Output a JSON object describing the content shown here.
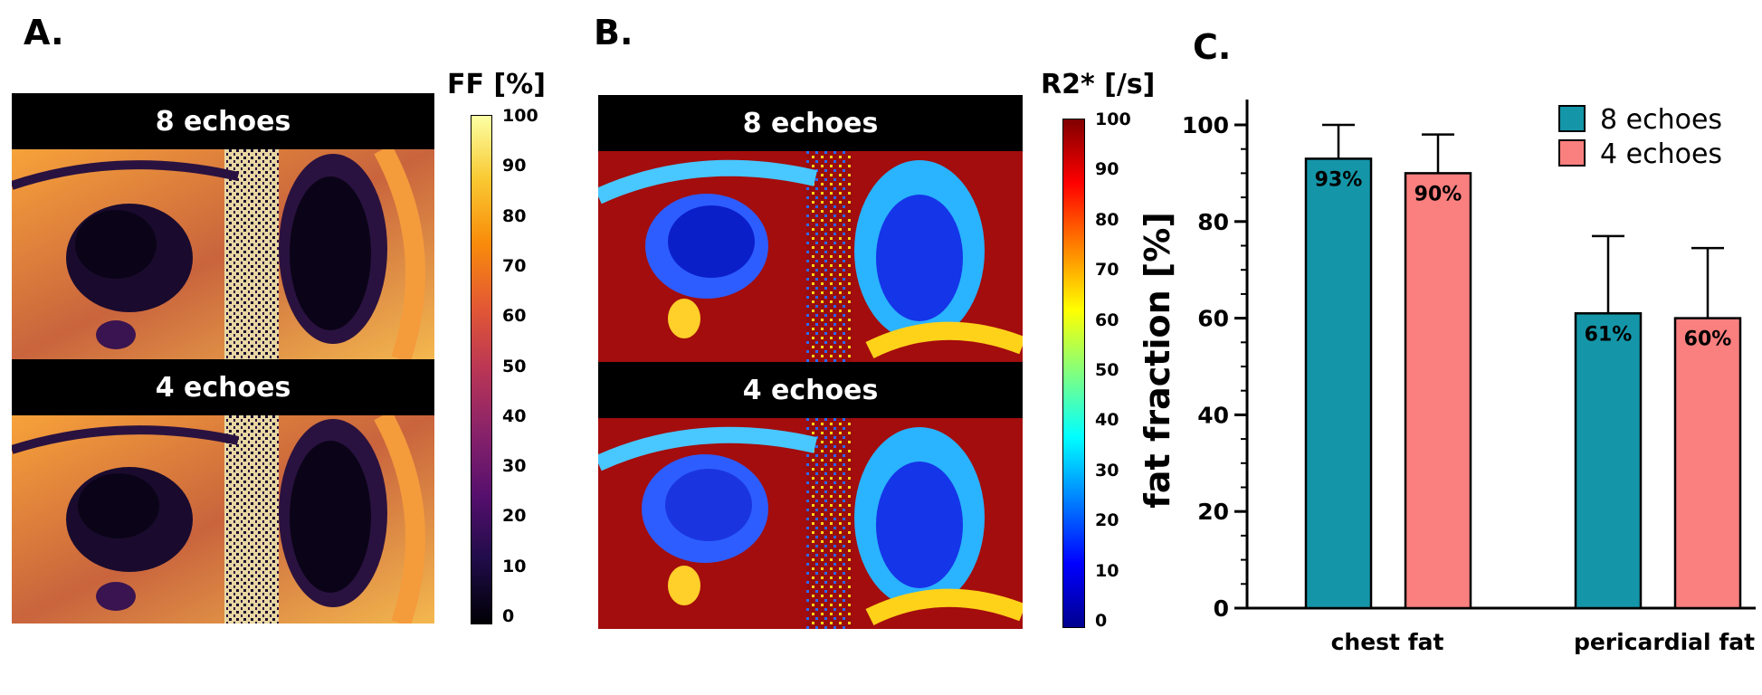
{
  "panel_a": {
    "letter": "A.",
    "top_label": "8 echoes",
    "bottom_label": "4 echoes",
    "colorbar_title": "FF [%]",
    "colorbar_ticks": [
      "100",
      "90",
      "80",
      "70",
      "60",
      "50",
      "40",
      "30",
      "20",
      "10",
      "0"
    ],
    "colormap": [
      "#000004",
      "#1f0c48",
      "#550f6d",
      "#88226a",
      "#ba3655",
      "#e35933",
      "#f98c0a",
      "#f9c932",
      "#fcffa4"
    ]
  },
  "panel_b": {
    "letter": "B.",
    "top_label": "8 echoes",
    "bottom_label": "4 echoes",
    "colorbar_title": "R2* [/s]",
    "colorbar_ticks": [
      "100",
      "90",
      "80",
      "70",
      "60",
      "50",
      "40",
      "30",
      "20",
      "10",
      "0"
    ],
    "colormap": [
      "#00008f",
      "#0000ff",
      "#0080ff",
      "#00ffff",
      "#80ff80",
      "#ffff00",
      "#ff8000",
      "#ff0000",
      "#800000"
    ]
  },
  "panel_c": {
    "letter": "C."
  },
  "chart_data": {
    "type": "bar",
    "ylabel": "fat fraction [%]",
    "xlabel": "",
    "ylim": [
      0,
      100
    ],
    "yticks": [
      "0",
      "20",
      "40",
      "60",
      "80",
      "100"
    ],
    "categories": [
      "chest fat",
      "pericardial fat"
    ],
    "legend_position": "top-right",
    "series": [
      {
        "name": "8 echoes",
        "color": "#1496a8",
        "values": [
          93,
          61
        ],
        "errors": [
          7,
          16
        ],
        "data_labels": [
          "93%",
          "61%"
        ]
      },
      {
        "name": "4 echoes",
        "color": "#fa7f7f",
        "values": [
          90,
          60
        ],
        "errors": [
          8,
          14.5
        ],
        "data_labels": [
          "90%",
          "60%"
        ]
      }
    ]
  }
}
